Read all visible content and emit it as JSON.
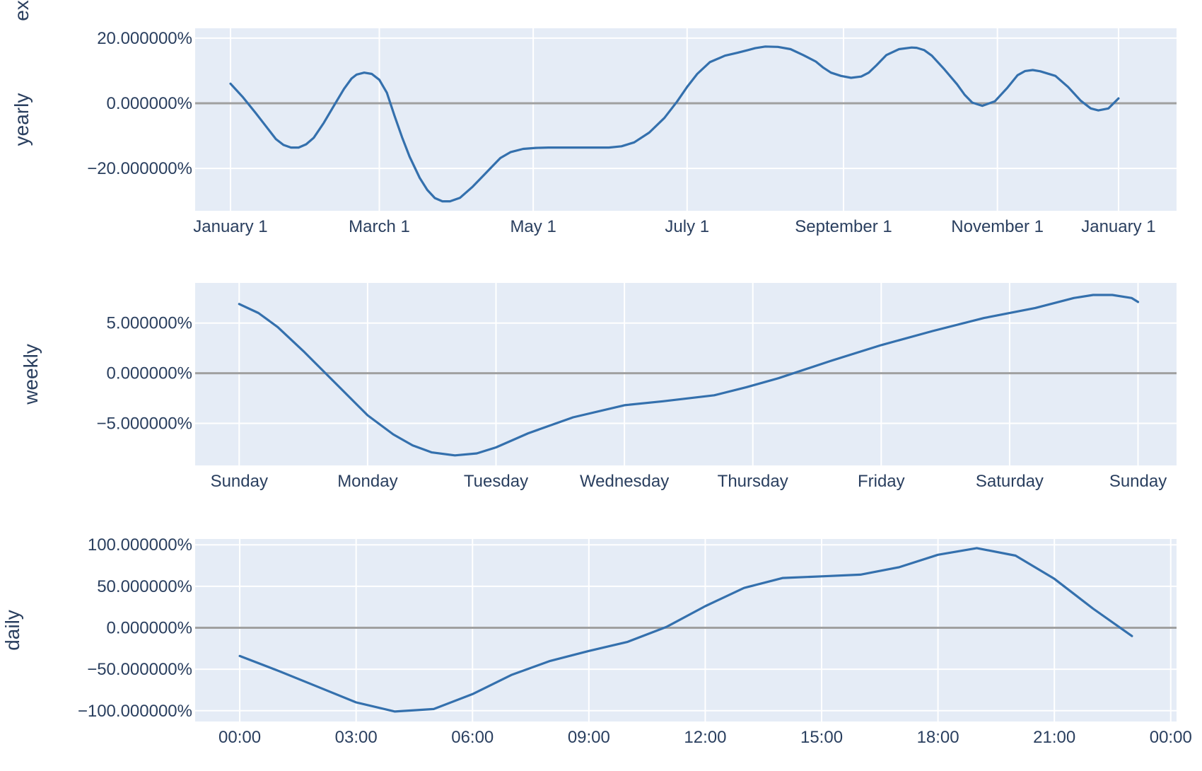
{
  "chart_data": [
    {
      "type": "line",
      "component": "yearly",
      "ylabel": "yearly",
      "top_cut_label": "ex",
      "ylim": [
        -33,
        23
      ],
      "yticks": [
        20,
        0,
        -20
      ],
      "ytick_labels": [
        "20.000000%",
        "0.000000%",
        "−20.000000%"
      ],
      "xlim": [
        -14,
        375
      ],
      "xticks": [
        0,
        59,
        120,
        181,
        243,
        304,
        352
      ],
      "xtick_labels": [
        "January  1",
        "March  1",
        "May  1",
        "July  1",
        "September  1",
        "November  1",
        "January  1"
      ],
      "grid": true,
      "zero_line": true,
      "line_color": "#3470ad",
      "plot_bg": "#e5ecf6",
      "series": [
        {
          "x": [
            0,
            5,
            10,
            15,
            18,
            21,
            24,
            27,
            30,
            33,
            37,
            41,
            45,
            48,
            50,
            53,
            56,
            59,
            62,
            65,
            68,
            71,
            75,
            78,
            81,
            84,
            87,
            91,
            96,
            101,
            104,
            107,
            111,
            116,
            121,
            126,
            133,
            140,
            146,
            150,
            155,
            160,
            166,
            172,
            177,
            181,
            185,
            190,
            196,
            201,
            205,
            208,
            212,
            217,
            222,
            227,
            232,
            235,
            238,
            242,
            246,
            250,
            253,
            256,
            260,
            265,
            270,
            272,
            275,
            278,
            283,
            288,
            291,
            294,
            298,
            303,
            308,
            312,
            315,
            318,
            321,
            327,
            332,
            337,
            341,
            344,
            348,
            352
          ],
          "y": [
            6,
            1.8,
            -3,
            -8,
            -11,
            -12.8,
            -13.6,
            -13.6,
            -12.6,
            -10.6,
            -6,
            -0.8,
            4.4,
            7.6,
            8.8,
            9.4,
            9,
            7.2,
            3.2,
            -3.8,
            -10.4,
            -16.4,
            -22.9,
            -26.6,
            -29.1,
            -30.1,
            -30.1,
            -29,
            -25.6,
            -21.6,
            -19.2,
            -16.8,
            -15,
            -14,
            -13.7,
            -13.6,
            -13.6,
            -13.6,
            -13.6,
            -13.6,
            -13.2,
            -12,
            -9,
            -4.5,
            0.5,
            5,
            9,
            12.6,
            14.6,
            15.5,
            16.3,
            16.9,
            17.4,
            17.3,
            16.6,
            14.8,
            12.8,
            10.9,
            9.4,
            8.4,
            7.8,
            8.2,
            9.4,
            11.6,
            14.8,
            16.6,
            17.1,
            17,
            16.3,
            14.6,
            10.4,
            5.8,
            2.6,
            0.2,
            -0.8,
            0.6,
            4.8,
            8.6,
            9.9,
            10.2,
            9.8,
            8.4,
            5,
            0.8,
            -1.6,
            -2.2,
            -1.6,
            1.5
          ]
        }
      ]
    },
    {
      "type": "line",
      "component": "weekly",
      "ylabel": "weekly",
      "ylim": [
        -9.2,
        9.0
      ],
      "yticks": [
        5,
        0,
        -5
      ],
      "ytick_labels": [
        "5.000000%",
        "0.000000%",
        "−5.000000%"
      ],
      "xlim": [
        -0.343,
        7.3
      ],
      "xticks": [
        0,
        1,
        2,
        3,
        4,
        5,
        6,
        7
      ],
      "xtick_labels": [
        "Sunday",
        "Monday",
        "Tuesday",
        "Wednesday",
        "Thursday",
        "Friday",
        "Saturday",
        "Sunday"
      ],
      "grid": true,
      "zero_line": true,
      "line_color": "#3470ad",
      "plot_bg": "#e5ecf6",
      "series": [
        {
          "x": [
            0,
            0.15,
            0.3,
            0.5,
            0.75,
            1,
            1.2,
            1.35,
            1.5,
            1.68,
            1.85,
            2,
            2.25,
            2.6,
            3,
            3.3,
            3.7,
            3.95,
            4.2,
            4.6,
            5,
            5.4,
            5.8,
            6.2,
            6.5,
            6.65,
            6.8,
            6.95,
            7
          ],
          "y": [
            6.9,
            6,
            4.6,
            2.2,
            -1,
            -4.2,
            -6.1,
            -7.2,
            -7.9,
            -8.2,
            -8,
            -7.4,
            -6,
            -4.4,
            -3.2,
            -2.8,
            -2.2,
            -1.4,
            -0.5,
            1.2,
            2.8,
            4.2,
            5.5,
            6.5,
            7.5,
            7.8,
            7.8,
            7.5,
            7.1
          ]
        }
      ]
    },
    {
      "type": "line",
      "component": "daily",
      "ylabel": "daily",
      "ylim": [
        -113,
        107
      ],
      "yticks": [
        100,
        50,
        0,
        -50,
        -100
      ],
      "ytick_labels": [
        "100.000000%",
        "50.000000%",
        "0.000000%",
        "−50.000000%",
        "−100.000000%"
      ],
      "xlim": [
        -1.15,
        24.15
      ],
      "xticks": [
        0,
        3,
        6,
        9,
        12,
        15,
        18,
        21,
        24
      ],
      "xtick_labels": [
        "00:00",
        "03:00",
        "06:00",
        "09:00",
        "12:00",
        "15:00",
        "18:00",
        "21:00",
        "00:00"
      ],
      "grid": true,
      "zero_line": true,
      "line_color": "#3470ad",
      "plot_bg": "#e5ecf6",
      "series": [
        {
          "x": [
            0,
            1,
            2,
            3,
            4,
            5,
            6,
            7,
            8,
            9,
            10,
            11,
            12,
            13,
            14,
            15,
            16,
            17,
            18,
            19,
            20,
            21,
            22,
            23
          ],
          "y": [
            -34,
            -52,
            -71,
            -90,
            -101,
            -98,
            -80,
            -57,
            -40,
            -28,
            -17,
            1,
            26,
            48,
            60,
            62,
            64,
            73,
            88,
            96,
            87,
            59,
            23,
            -10
          ]
        }
      ]
    }
  ]
}
